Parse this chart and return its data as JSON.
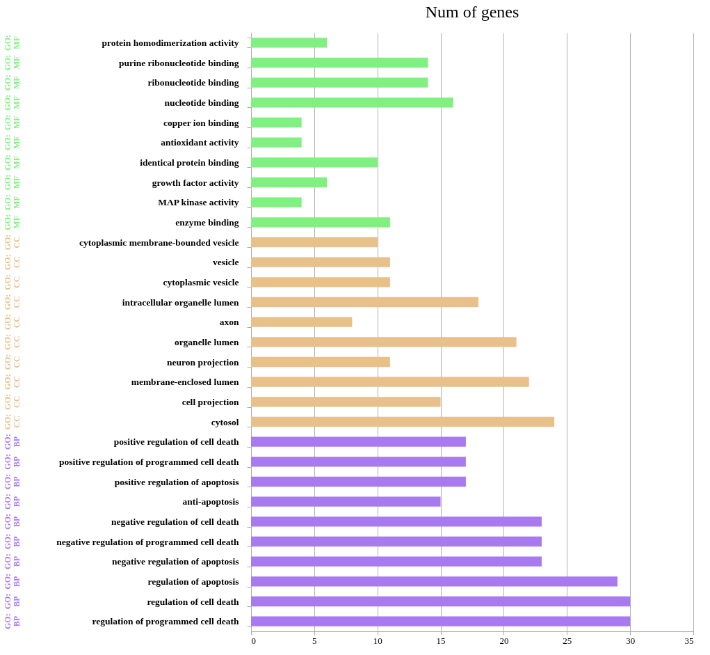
{
  "chart_data": {
    "type": "bar",
    "orientation": "horizontal",
    "title": "Num of genes",
    "categories": [
      "protein homodimerization activity",
      "purine ribonucleotide binding",
      "ribonucleotide binding",
      "nucleotide binding",
      "copper ion binding",
      "antioxidant activity",
      "identical protein binding",
      "growth factor activity",
      "MAP kinase activity",
      "enzyme binding",
      "cytoplasmic membrane-bounded vesicle",
      "vesicle",
      "cytoplasmic vesicle",
      "intracellular organelle lumen",
      "axon",
      "organelle lumen",
      "neuron projection",
      "membrane-enclosed lumen",
      "cell projection",
      "cytosol",
      "positive regulation of cell death",
      "positive regulation of programmed cell death",
      "positive regulation of apoptosis",
      "anti-apoptosis",
      "negative regulation of cell death",
      "negative regulation of programmed cell death",
      "negative regulation of apoptosis",
      "regulation of apoptosis",
      "regulation of cell death",
      "regulation of programmed cell death"
    ],
    "series": [
      {
        "name": "GO:MF",
        "color": "#80f080",
        "values": [
          6,
          14,
          14,
          16,
          4,
          4,
          10,
          6,
          4,
          11,
          null,
          null,
          null,
          null,
          null,
          null,
          null,
          null,
          null,
          null,
          null,
          null,
          null,
          null,
          null,
          null,
          null,
          null,
          null,
          null
        ]
      },
      {
        "name": "GO:CC",
        "color": "#e8c08a",
        "values": [
          null,
          null,
          null,
          null,
          null,
          null,
          null,
          null,
          null,
          null,
          10,
          11,
          11,
          18,
          8,
          21,
          11,
          22,
          15,
          24,
          null,
          null,
          null,
          null,
          null,
          null,
          null,
          null,
          null,
          null
        ]
      },
      {
        "name": "GO:BP",
        "color": "#a87af0",
        "values": [
          null,
          null,
          null,
          null,
          null,
          null,
          null,
          null,
          null,
          null,
          null,
          null,
          null,
          null,
          null,
          null,
          null,
          null,
          null,
          null,
          17,
          17,
          17,
          15,
          23,
          23,
          23,
          29,
          30,
          30
        ]
      }
    ],
    "xlim": [
      0,
      35
    ],
    "xticks": [
      0,
      5,
      10,
      15,
      20,
      25,
      30,
      35
    ],
    "grid": "x",
    "legend": false
  }
}
